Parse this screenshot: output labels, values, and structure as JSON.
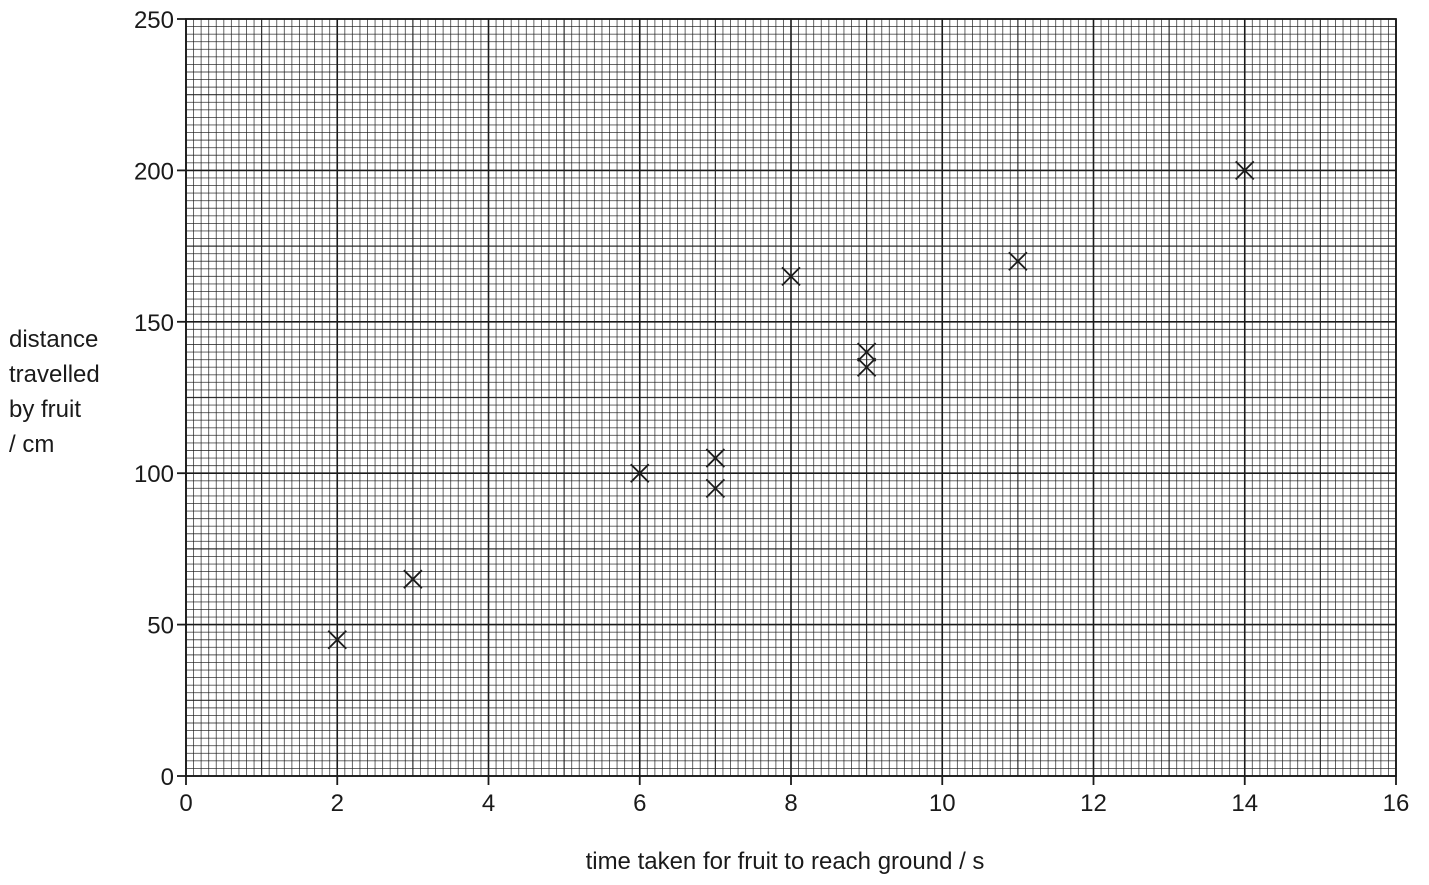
{
  "chart_data": {
    "type": "scatter",
    "title": "",
    "xlabel": "time taken for fruit to reach ground / s",
    "ylabel_lines": [
      "distance",
      "travelled",
      "by fruit",
      "/ cm"
    ],
    "xlim": [
      0,
      16
    ],
    "ylim": [
      0,
      250
    ],
    "x_ticks": [
      "0",
      "2",
      "4",
      "6",
      "8",
      "10",
      "12",
      "14",
      "16"
    ],
    "y_ticks": [
      "0",
      "50",
      "100",
      "150",
      "200",
      "250"
    ],
    "grid": true,
    "marker": "cross",
    "points": [
      {
        "x": 2,
        "y": 45
      },
      {
        "x": 3,
        "y": 65
      },
      {
        "x": 6,
        "y": 100
      },
      {
        "x": 7,
        "y": 105
      },
      {
        "x": 7,
        "y": 95
      },
      {
        "x": 8,
        "y": 165
      },
      {
        "x": 9,
        "y": 140
      },
      {
        "x": 9,
        "y": 135
      },
      {
        "x": 11,
        "y": 170
      },
      {
        "x": 14,
        "y": 200
      }
    ]
  },
  "colors": {
    "ink": "#1a1a1a",
    "background": "#ffffff"
  }
}
